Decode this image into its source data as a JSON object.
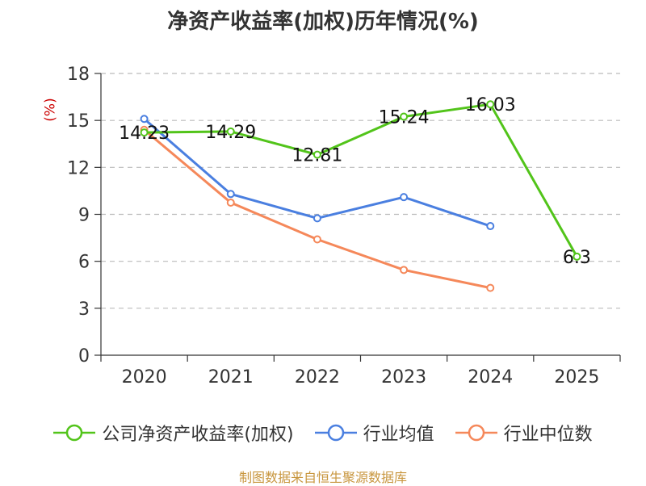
{
  "chart_data": {
    "type": "line",
    "title": "净资产收益率(加权)历年情况(%)",
    "ylabel": "(%)",
    "xlabel": "",
    "categories": [
      "2020",
      "2021",
      "2022",
      "2023",
      "2024",
      "2025"
    ],
    "ylim": [
      0,
      18
    ],
    "yticks": [
      0,
      3,
      6,
      9,
      12,
      15,
      18
    ],
    "grid": true,
    "legend_position": "bottom",
    "series": [
      {
        "name": "公司净资产收益率(加权)",
        "color": "#52c41a",
        "values": [
          14.23,
          14.29,
          12.81,
          15.24,
          16.03,
          6.3
        ],
        "labels": [
          "14.23",
          "14.29",
          "12.81",
          "15.24",
          "16.03",
          "6.3"
        ]
      },
      {
        "name": "行业均值",
        "color": "#4a7fe0",
        "values": [
          15.1,
          10.3,
          8.75,
          10.1,
          8.25,
          null
        ]
      },
      {
        "name": "行业中位数",
        "color": "#f5885a",
        "values": [
          14.4,
          9.75,
          7.4,
          5.45,
          4.3,
          null
        ]
      }
    ]
  },
  "source": "制图数据来自恒生聚源数据库"
}
